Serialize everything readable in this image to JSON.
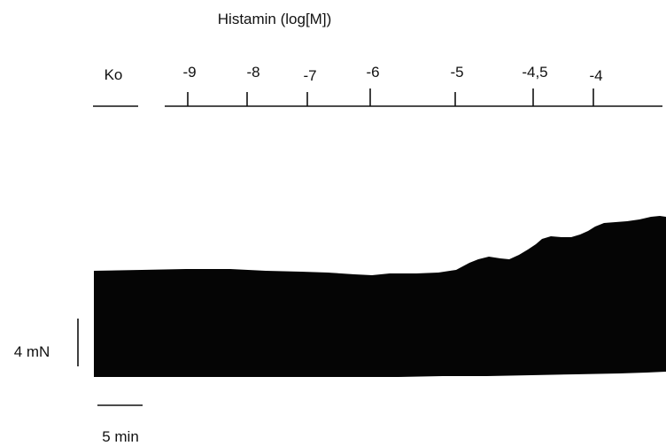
{
  "figure": {
    "title": "Histamin (log[M])",
    "control_label": "Ko",
    "concentration_labels": [
      "-9",
      "-8",
      "-7",
      "-6",
      "-5",
      "-4,5",
      "-4"
    ],
    "scale_bar_force": "4 mN",
    "scale_bar_time": "5 min",
    "trace_color": "#050505"
  }
}
